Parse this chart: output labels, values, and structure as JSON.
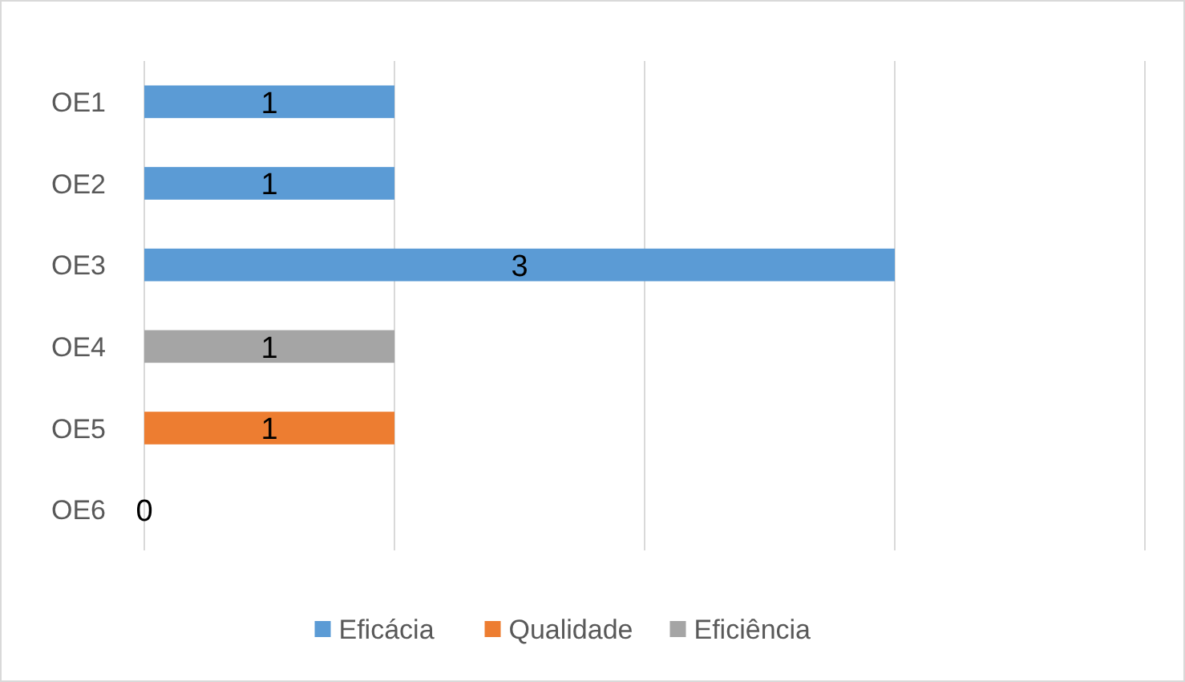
{
  "chart_data": {
    "type": "bar",
    "orientation": "horizontal",
    "categories": [
      "OE1",
      "OE2",
      "OE3",
      "OE4",
      "OE5",
      "OE6"
    ],
    "series": [
      {
        "name": "Eficácia",
        "color": "#5b9bd5",
        "values": [
          1,
          1,
          3,
          null,
          null,
          0
        ]
      },
      {
        "name": "Qualidade",
        "color": "#ed7d31",
        "values": [
          null,
          null,
          null,
          null,
          1,
          null
        ]
      },
      {
        "name": "Eficiência",
        "color": "#a5a5a5",
        "values": [
          null,
          null,
          null,
          1,
          null,
          null
        ]
      }
    ],
    "xlim": [
      0,
      4
    ],
    "xticks": [
      {
        "value": 0,
        "label": null
      },
      {
        "value": 1,
        "label": null
      },
      {
        "value": 2,
        "label": null
      },
      {
        "value": 3,
        "label": null
      },
      {
        "value": 4,
        "label": null
      }
    ],
    "tick_labels": "y",
    "grid": "x",
    "legend": "bottom",
    "data_labels": true
  }
}
